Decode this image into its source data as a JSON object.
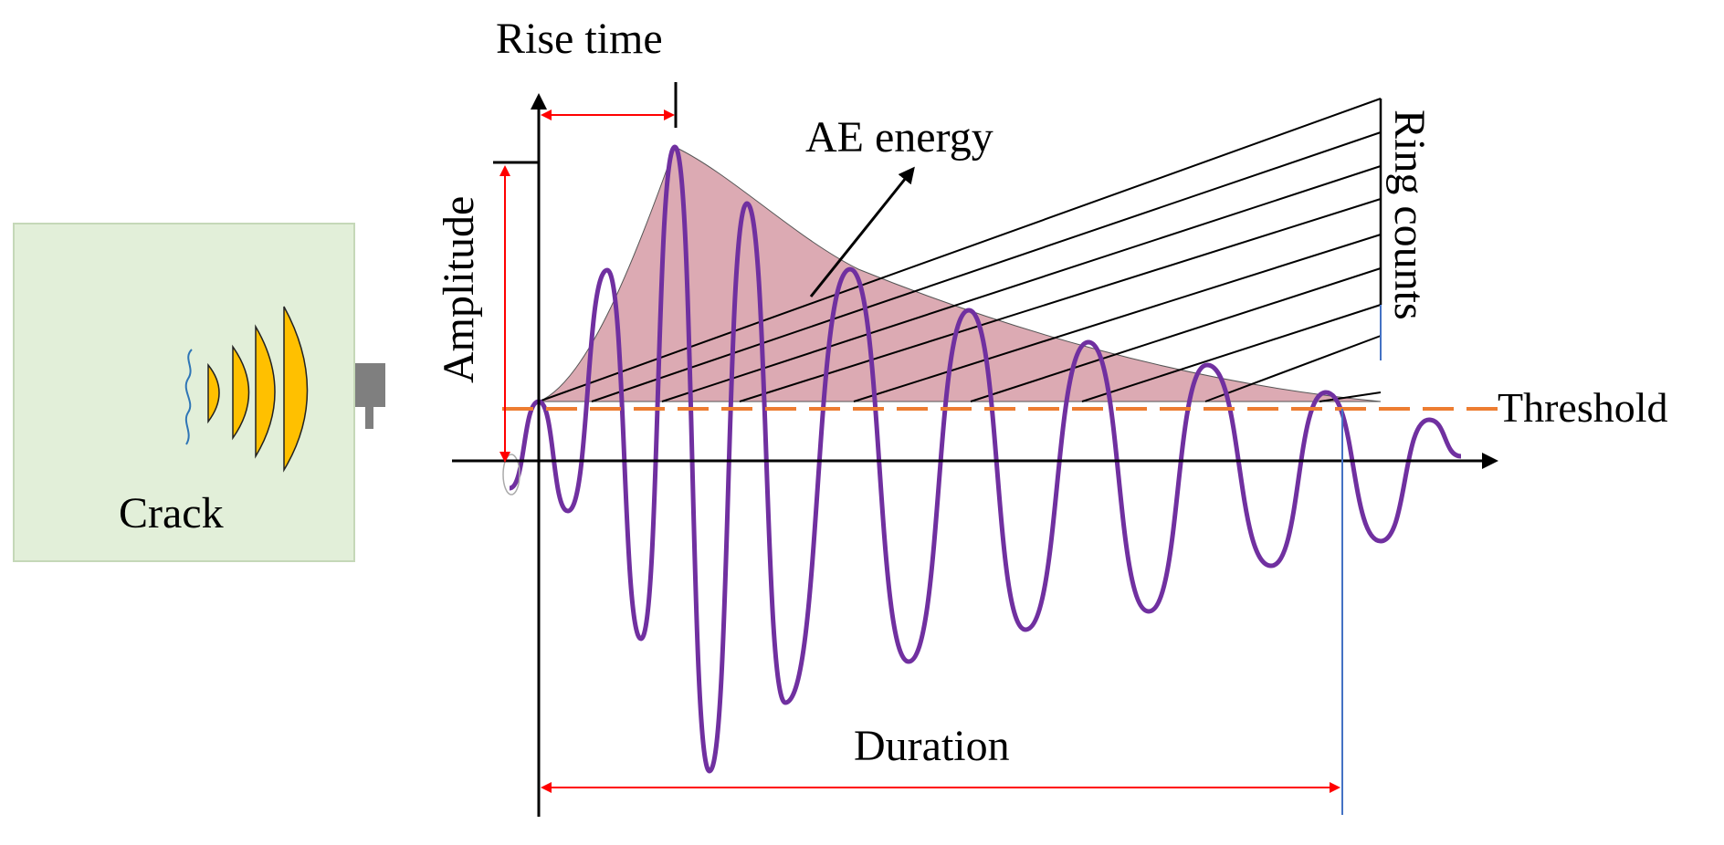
{
  "labels": {
    "crack": "Crack",
    "rise_time": "Rise time",
    "amplitude": "Amplitude",
    "ae_energy": "AE energy",
    "ring_counts": "Ring counts",
    "threshold": "Threshold",
    "duration": "Duration"
  },
  "colors": {
    "specimen_fill": "#e2efd9",
    "specimen_stroke": "#c5d8b8",
    "wavefront_fill": "#ffc000",
    "sensor_fill": "#7f7f7f",
    "signal": "#7030a0",
    "energy_fill": "#dcaab3",
    "threshold_line": "#ed7d31",
    "dimension_arrow": "#ff0000",
    "duration_end_line": "#4472c4",
    "crack_line": "#2e75b6",
    "ink": "#000000"
  }
}
